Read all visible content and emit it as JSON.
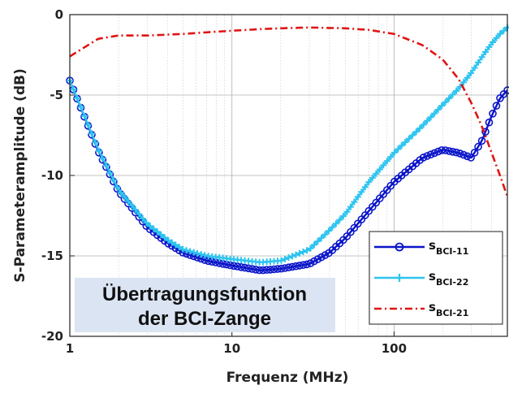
{
  "chart_data": {
    "type": "line",
    "xlabel": "Frequenz (MHz)",
    "ylabel": "S-Parameteramplitude (dB)",
    "xscale": "log",
    "xlim": [
      1,
      500
    ],
    "ylim": [
      -20,
      0
    ],
    "grid": true,
    "x_tick_labels": [
      "1",
      "10",
      "100"
    ],
    "y_tick_labels": [
      "0",
      "-5",
      "-10",
      "-15",
      "-20"
    ],
    "legend_position": "bottom-right",
    "annotation": [
      "Übertragungsfunktion",
      "der BCI-Zange"
    ],
    "series": [
      {
        "name_main": "s",
        "name_sub": "BCI-11",
        "color": "#0a14c8",
        "marker": "circle",
        "line": "solid",
        "x": [
          1,
          1.5,
          2,
          3,
          4,
          5,
          7,
          10,
          15,
          20,
          30,
          40,
          50,
          70,
          100,
          150,
          200,
          250,
          300,
          350,
          400,
          450,
          500
        ],
        "y": [
          -4.1,
          -8.5,
          -11,
          -13.2,
          -14.2,
          -14.8,
          -15.3,
          -15.6,
          -15.9,
          -15.8,
          -15.5,
          -14.8,
          -13.9,
          -12.2,
          -10.4,
          -8.9,
          -8.4,
          -8.6,
          -8.9,
          -7.8,
          -6.3,
          -5.2,
          -4.7
        ]
      },
      {
        "name_main": "s",
        "name_sub": "BCI-22",
        "color": "#2ec4f0",
        "marker": "plus",
        "line": "solid",
        "x": [
          1,
          1.5,
          2,
          3,
          4,
          5,
          7,
          10,
          15,
          20,
          30,
          40,
          50,
          70,
          100,
          150,
          200,
          250,
          300,
          350,
          400,
          450,
          500
        ],
        "y": [
          -4.1,
          -8.4,
          -10.9,
          -13,
          -14,
          -14.6,
          -15,
          -15.2,
          -15.4,
          -15.3,
          -14.6,
          -13.4,
          -12.4,
          -10.4,
          -8.6,
          -6.9,
          -5.6,
          -4.6,
          -3.6,
          -2.6,
          -1.8,
          -1.2,
          -0.8
        ]
      },
      {
        "name_main": "s",
        "name_sub": "BCI-21",
        "color": "#e01414",
        "marker": "none",
        "line": "dashdot",
        "x": [
          1,
          1.2,
          1.5,
          2,
          3,
          5,
          7,
          10,
          15,
          20,
          30,
          50,
          70,
          100,
          150,
          200,
          250,
          300,
          350,
          400,
          450,
          500
        ],
        "y": [
          -2.6,
          -2.1,
          -1.5,
          -1.3,
          -1.3,
          -1.2,
          -1.1,
          -1,
          -0.9,
          -0.85,
          -0.8,
          -0.85,
          -0.95,
          -1.2,
          -1.9,
          -2.8,
          -4.0,
          -5.5,
          -7.0,
          -8.6,
          -10,
          -11.3
        ]
      }
    ]
  }
}
